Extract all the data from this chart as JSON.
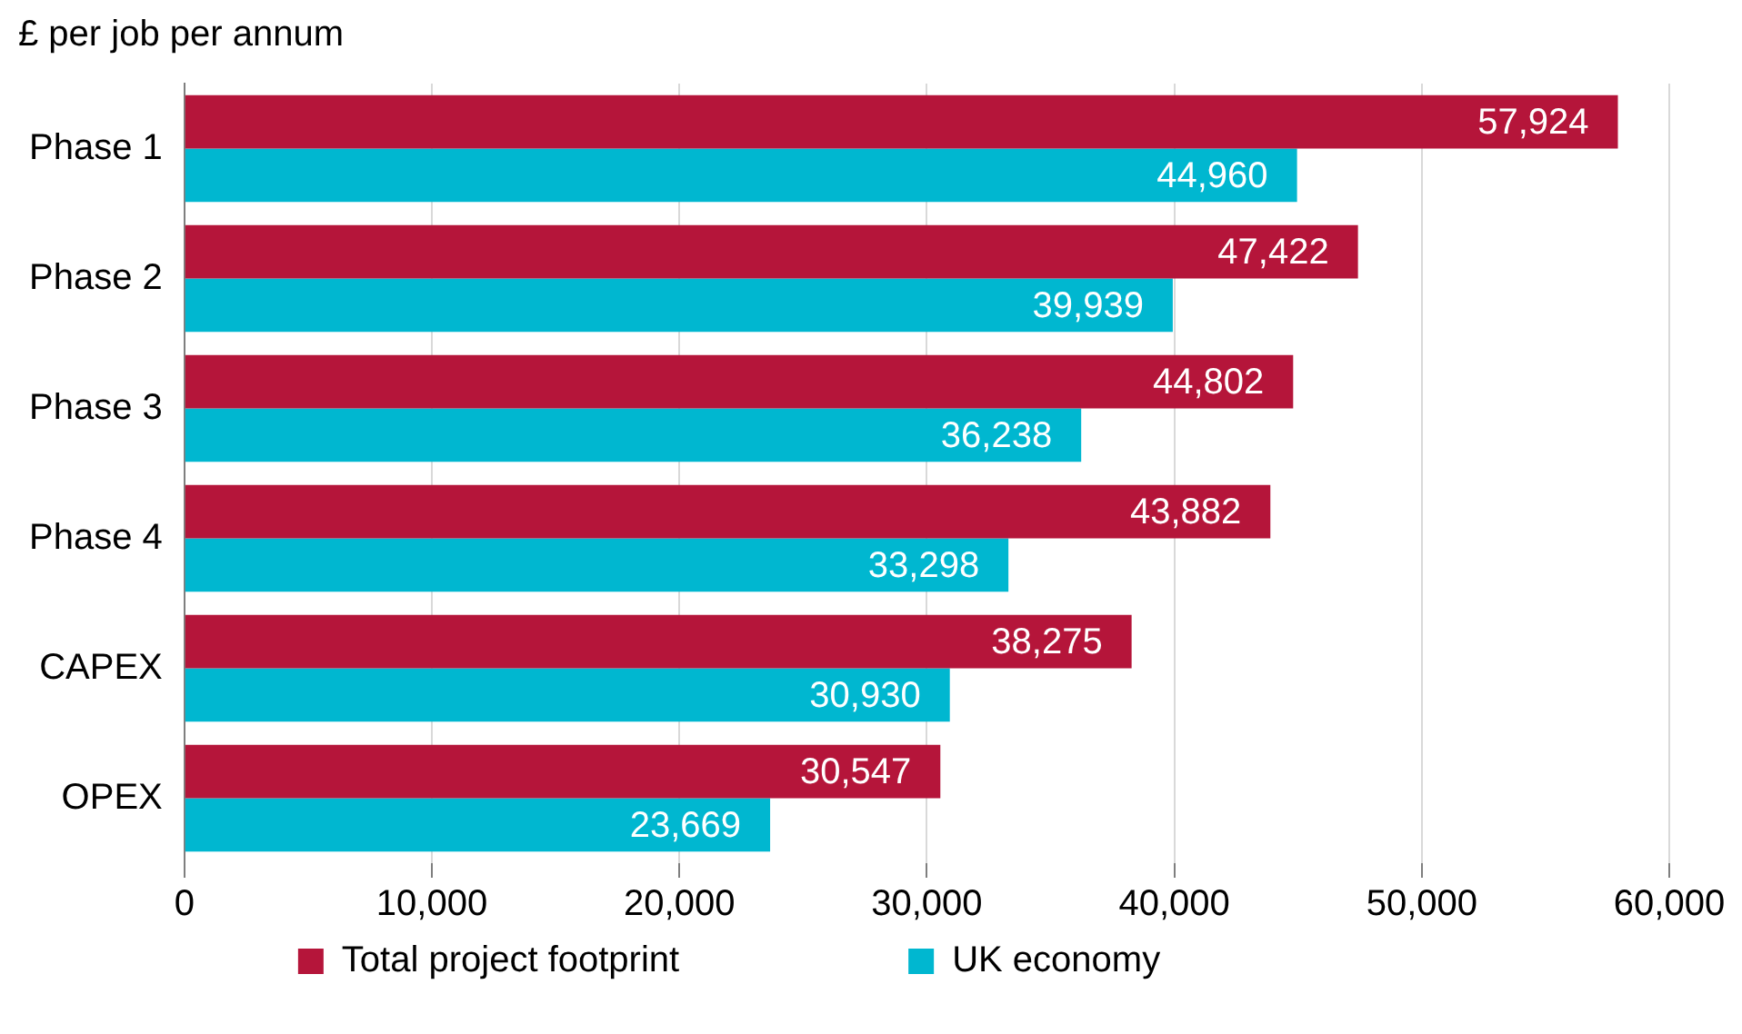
{
  "chart_data": {
    "type": "bar",
    "orientation": "horizontal",
    "ylabel": "£ per job per annum",
    "categories": [
      "Phase 1",
      "Phase 2",
      "Phase 3",
      "Phase 4",
      "CAPEX",
      "OPEX"
    ],
    "series": [
      {
        "name": "Total project footprint",
        "color": "#b5153a",
        "values": [
          57924,
          47422,
          44802,
          43882,
          38275,
          30547
        ],
        "value_labels": [
          "57,924",
          "47,422",
          "44,802",
          "43,882",
          "38,275",
          "30,547"
        ]
      },
      {
        "name": "UK economy",
        "color": "#00b7d0",
        "values": [
          44960,
          39939,
          36238,
          33298,
          30930,
          23669
        ],
        "value_labels": [
          "44,960",
          "39,939",
          "36,238",
          "33,298",
          "30,930",
          "23,669"
        ]
      }
    ],
    "xlim": [
      0,
      60000
    ],
    "xticks": [
      {
        "value": 0,
        "label": "0"
      },
      {
        "value": 10000,
        "label": "10,000"
      },
      {
        "value": 20000,
        "label": "20,000"
      },
      {
        "value": 30000,
        "label": "30,000"
      },
      {
        "value": 40000,
        "label": "40,000"
      },
      {
        "value": 50000,
        "label": "50,000"
      },
      {
        "value": 60000,
        "label": "60,000"
      }
    ],
    "grid": "x",
    "legend": "bottom"
  }
}
